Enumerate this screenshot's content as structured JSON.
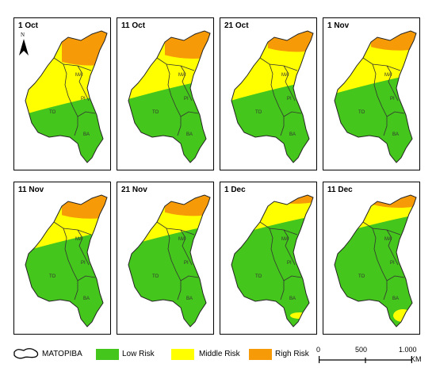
{
  "map": {
    "panels": [
      {
        "date": "1 Oct",
        "risk": {
          "high": 0.25,
          "middle": 0.22,
          "south": 0
        }
      },
      {
        "date": "11 Oct",
        "risk": {
          "high": 0.2,
          "middle": 0.16,
          "south": 0
        }
      },
      {
        "date": "21 Oct",
        "risk": {
          "high": 0.15,
          "middle": 0.22,
          "south": 0
        }
      },
      {
        "date": "1 Nov",
        "risk": {
          "high": 0.14,
          "middle": 0.18,
          "south": 0
        }
      },
      {
        "date": "11 Nov",
        "risk": {
          "high": 0.17,
          "middle": 0.1,
          "south": 0
        }
      },
      {
        "date": "21 Nov",
        "risk": {
          "high": 0.15,
          "middle": 0.08,
          "south": 0
        }
      },
      {
        "date": "1 Dec",
        "risk": {
          "high": 0.06,
          "middle": 0.1,
          "south": 0.02
        }
      },
      {
        "date": "11 Dec",
        "risk": {
          "high": 0.09,
          "middle": 0.06,
          "south": 0.04
        }
      }
    ],
    "state_labels": [
      "MA",
      "PI",
      "TO",
      "BA"
    ],
    "north_label": "N"
  },
  "legend": {
    "outline_label": "MATOPIBA",
    "items": [
      {
        "label": "Low Risk",
        "color": "#44c61c"
      },
      {
        "label": "Middle Risk",
        "color": "#ffff00"
      },
      {
        "label": "Righ Risk",
        "color": "#f79a08"
      }
    ]
  },
  "scale": {
    "ticks": [
      "0",
      "500",
      "1.000"
    ],
    "unit": "KM"
  }
}
